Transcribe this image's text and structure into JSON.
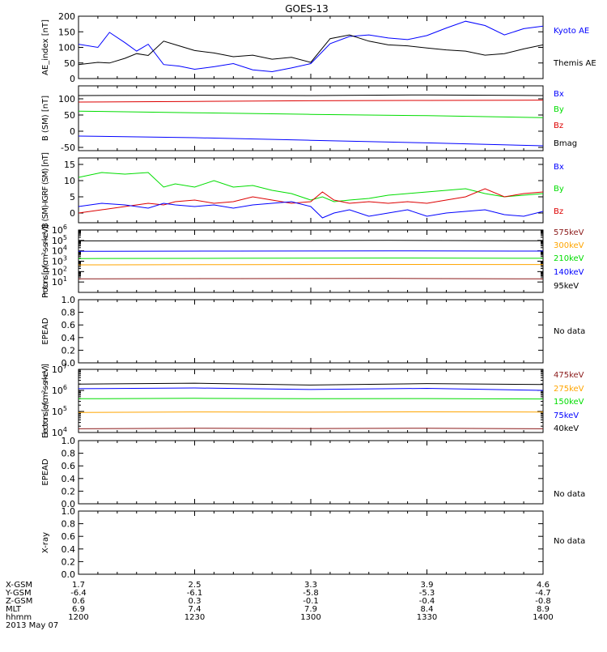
{
  "title": "GOES-13",
  "chart_data": [
    {
      "id": "ae",
      "type": "line",
      "ylabel": "AE_index [nT]",
      "ylim": [
        0,
        200
      ],
      "yticks": [
        0,
        50,
        100,
        150,
        200
      ],
      "legend": [
        {
          "label": "Kyoto AE",
          "color": "#0000ff"
        },
        {
          "label": "Themis AE",
          "color": "#000000"
        }
      ],
      "series": [
        {
          "name": "Kyoto AE",
          "color": "#0000ff",
          "x": [
            0,
            5,
            8,
            12,
            15,
            18,
            22,
            26,
            30,
            35,
            40,
            45,
            50,
            55,
            60,
            65,
            70,
            75,
            80,
            85,
            90,
            95,
            100,
            105,
            110,
            115,
            120
          ],
          "y": [
            110,
            100,
            148,
            115,
            88,
            110,
            45,
            40,
            30,
            38,
            48,
            28,
            22,
            34,
            48,
            112,
            135,
            140,
            130,
            125,
            138,
            162,
            184,
            170,
            140,
            160,
            168
          ]
        },
        {
          "name": "Themis AE",
          "color": "#000000",
          "x": [
            0,
            5,
            8,
            12,
            15,
            18,
            22,
            26,
            30,
            35,
            40,
            45,
            50,
            55,
            60,
            65,
            70,
            75,
            80,
            85,
            90,
            95,
            100,
            105,
            110,
            115,
            120
          ],
          "y": [
            45,
            52,
            50,
            65,
            80,
            74,
            120,
            105,
            90,
            82,
            70,
            75,
            62,
            68,
            52,
            128,
            140,
            120,
            108,
            105,
            98,
            92,
            88,
            75,
            80,
            95,
            108
          ]
        }
      ]
    },
    {
      "id": "bsm",
      "type": "line",
      "ylabel": "B (SM) [nT]",
      "ylim": [
        -60,
        140
      ],
      "yticks": [
        -50,
        0,
        50,
        100
      ],
      "legend": [
        {
          "label": "Bx",
          "color": "#0000ff"
        },
        {
          "label": "By",
          "color": "#00dd00"
        },
        {
          "label": "Bz",
          "color": "#dd0000"
        },
        {
          "label": "Bmag",
          "color": "#000000"
        }
      ],
      "series": [
        {
          "name": "Bmag",
          "color": "#000000",
          "x": [
            0,
            30,
            60,
            90,
            120
          ],
          "y": [
            110,
            111,
            110,
            112,
            110
          ]
        },
        {
          "name": "Bz",
          "color": "#dd0000",
          "x": [
            0,
            30,
            60,
            90,
            120
          ],
          "y": [
            90,
            92,
            94,
            95,
            96
          ]
        },
        {
          "name": "By",
          "color": "#00dd00",
          "x": [
            0,
            30,
            60,
            90,
            120
          ],
          "y": [
            62,
            57,
            52,
            48,
            42
          ]
        },
        {
          "name": "Bx",
          "color": "#0000ff",
          "x": [
            0,
            30,
            60,
            90,
            120
          ],
          "y": [
            -15,
            -20,
            -28,
            -36,
            -45
          ]
        }
      ]
    },
    {
      "id": "bigrf",
      "type": "line",
      "ylabel": "B (SM)-IGRF (SM) [nT]",
      "ylim": [
        -3,
        17
      ],
      "yticks": [
        0,
        5,
        10,
        15
      ],
      "legend": [
        {
          "label": "Bx",
          "color": "#0000ff"
        },
        {
          "label": "By",
          "color": "#00dd00"
        },
        {
          "label": "Bz",
          "color": "#dd0000"
        }
      ],
      "series": [
        {
          "name": "By",
          "color": "#00dd00",
          "x": [
            0,
            6,
            12,
            18,
            22,
            25,
            30,
            35,
            40,
            45,
            50,
            55,
            60,
            63,
            66,
            70,
            75,
            80,
            85,
            90,
            95,
            100,
            105,
            110,
            115,
            120
          ],
          "y": [
            11,
            12.5,
            12,
            12.5,
            8,
            9,
            8,
            10,
            8,
            8.5,
            7,
            6,
            4,
            5,
            3.5,
            4,
            4.5,
            5.5,
            6,
            6.5,
            7,
            7.5,
            6,
            5,
            5.5,
            6
          ]
        },
        {
          "name": "Bz",
          "color": "#dd0000",
          "x": [
            0,
            6,
            12,
            18,
            22,
            25,
            30,
            35,
            40,
            45,
            50,
            55,
            60,
            63,
            66,
            70,
            75,
            80,
            85,
            90,
            95,
            100,
            105,
            110,
            115,
            120
          ],
          "y": [
            0,
            1,
            2,
            3,
            2.5,
            3.5,
            4,
            3,
            3.5,
            5,
            4,
            3,
            3.5,
            6.5,
            4,
            3,
            3.5,
            3,
            3.5,
            3,
            4,
            5,
            7.5,
            5,
            6,
            6.5
          ]
        },
        {
          "name": "Bx",
          "color": "#0000ff",
          "x": [
            0,
            6,
            12,
            18,
            22,
            25,
            30,
            35,
            40,
            45,
            50,
            55,
            60,
            63,
            66,
            70,
            75,
            80,
            85,
            90,
            95,
            100,
            105,
            110,
            115,
            120
          ],
          "y": [
            2,
            3,
            2.5,
            1.5,
            3,
            2.5,
            2,
            2.5,
            1.5,
            2.5,
            3,
            3.5,
            2,
            -1.5,
            0,
            1,
            -1,
            0,
            1,
            -1,
            0,
            0.5,
            1,
            -0.5,
            -1,
            0.5
          ]
        }
      ]
    },
    {
      "id": "protons",
      "type": "line",
      "ylabel": "Protons [p/(cm²-s-sr-keV)]",
      "scale": "log",
      "ylim": [
        1,
        1000000
      ],
      "ytick_exponents": [
        1,
        2,
        3,
        4,
        5,
        6
      ],
      "legend": [
        {
          "label": "575keV",
          "color": "#8b1a1a"
        },
        {
          "label": "300keV",
          "color": "#ffa500"
        },
        {
          "label": "210keV",
          "color": "#00dd00"
        },
        {
          "label": "140keV",
          "color": "#0000ff"
        },
        {
          "label": "95keV",
          "color": "#000000"
        }
      ],
      "series": [
        {
          "name": "95keV",
          "color": "#000000",
          "x": [
            0,
            40,
            80,
            120
          ],
          "y": [
            90000,
            95000,
            100000,
            92000
          ]
        },
        {
          "name": "140keV",
          "color": "#0000ff",
          "x": [
            0,
            40,
            80,
            120
          ],
          "y": [
            9000,
            9500,
            10000,
            9500
          ]
        },
        {
          "name": "210keV",
          "color": "#00dd00",
          "x": [
            0,
            40,
            80,
            120
          ],
          "y": [
            1800,
            1900,
            2000,
            1900
          ]
        },
        {
          "name": "300keV",
          "color": "#ffa500",
          "x": [
            0,
            40,
            80,
            120
          ],
          "y": [
            450,
            470,
            490,
            480
          ]
        },
        {
          "name": "575keV",
          "color": "#8b1a1a",
          "x": [
            0,
            40,
            80,
            120
          ],
          "y": [
            20,
            21,
            22,
            20
          ]
        }
      ]
    },
    {
      "id": "epead1",
      "type": "line",
      "ylabel": "EPEAD",
      "ylim": [
        0,
        1
      ],
      "yticks": [
        0,
        0.2,
        0.4,
        0.6,
        0.8,
        1.0
      ],
      "yticks_text": [
        "0.0",
        "0.2",
        "0.4",
        "0.6",
        "0.8",
        "1.0"
      ],
      "legend": [
        {
          "label": "No data",
          "color": "#000000"
        }
      ],
      "series": []
    },
    {
      "id": "electrons",
      "type": "line",
      "ylabel": "Electrons [e/(cm²-s-sr-keV)]",
      "scale": "log",
      "ylim": [
        10000,
        10000000
      ],
      "ytick_exponents": [
        4,
        5,
        6,
        7
      ],
      "legend": [
        {
          "label": "475keV",
          "color": "#8b1a1a"
        },
        {
          "label": "275keV",
          "color": "#ffa500"
        },
        {
          "label": "150keV",
          "color": "#00dd00"
        },
        {
          "label": "75keV",
          "color": "#0000ff"
        },
        {
          "label": "40keV",
          "color": "#000000"
        }
      ],
      "series": [
        {
          "name": "40keV",
          "color": "#000000",
          "x": [
            0,
            30,
            60,
            90,
            120
          ],
          "y": [
            2000000,
            2200000,
            1800000,
            2100000,
            1900000
          ]
        },
        {
          "name": "75keV",
          "color": "#0000ff",
          "x": [
            0,
            30,
            60,
            90,
            120
          ],
          "y": [
            1200000,
            1300000,
            1100000,
            1250000,
            1000000
          ]
        },
        {
          "name": "150keV",
          "color": "#00dd00",
          "x": [
            0,
            30,
            60,
            90,
            120
          ],
          "y": [
            400000,
            420000,
            400000,
            410000,
            390000
          ]
        },
        {
          "name": "275keV",
          "color": "#ffa500",
          "x": [
            0,
            30,
            60,
            90,
            120
          ],
          "y": [
            90000,
            95000,
            92000,
            96000,
            94000
          ]
        },
        {
          "name": "475keV",
          "color": "#8b1a1a",
          "x": [
            0,
            30,
            60,
            90,
            120
          ],
          "y": [
            15000,
            16000,
            15500,
            16000,
            15000
          ]
        }
      ]
    },
    {
      "id": "epead2",
      "type": "line",
      "ylabel": "EPEAD",
      "ylim": [
        0,
        1
      ],
      "yticks": [
        0,
        0.2,
        0.4,
        0.6,
        0.8,
        1.0
      ],
      "yticks_text": [
        "0.0",
        "0.2",
        "0.4",
        "0.6",
        "0.8",
        "1.0"
      ],
      "legend": [
        {
          "label": "No data",
          "color": "#000000"
        }
      ],
      "series": []
    },
    {
      "id": "xray",
      "type": "line",
      "ylabel": "X-ray",
      "ylim": [
        0,
        1
      ],
      "yticks": [
        0,
        0.2,
        0.4,
        0.6,
        0.8,
        1.0
      ],
      "yticks_text": [
        "0.0",
        "0.2",
        "0.4",
        "0.6",
        "0.8",
        "1.0"
      ],
      "legend": [
        {
          "label": "No data",
          "color": "#000000"
        }
      ],
      "series": []
    }
  ],
  "x_axis": {
    "range": [
      0,
      120
    ],
    "major_ticks": [
      0,
      30,
      60,
      90,
      120
    ],
    "minor_step": 5,
    "rows": [
      {
        "label": "X-GSM",
        "values": [
          "1.7",
          "2.5",
          "3.3",
          "3.9",
          "4.6"
        ]
      },
      {
        "label": "Y-GSM",
        "values": [
          "-6.4",
          "-6.1",
          "-5.8",
          "-5.3",
          "-4.7"
        ]
      },
      {
        "label": "Z-GSM",
        "values": [
          "0.6",
          "0.3",
          "-0.1",
          "-0.4",
          "-0.8"
        ]
      },
      {
        "label": "MLT",
        "values": [
          "6.9",
          "7.4",
          "7.9",
          "8.4",
          "8.9"
        ]
      },
      {
        "label": "hhmm",
        "values": [
          "1200",
          "1230",
          "1300",
          "1330",
          "1400"
        ]
      }
    ],
    "date": "2013 May 07"
  }
}
